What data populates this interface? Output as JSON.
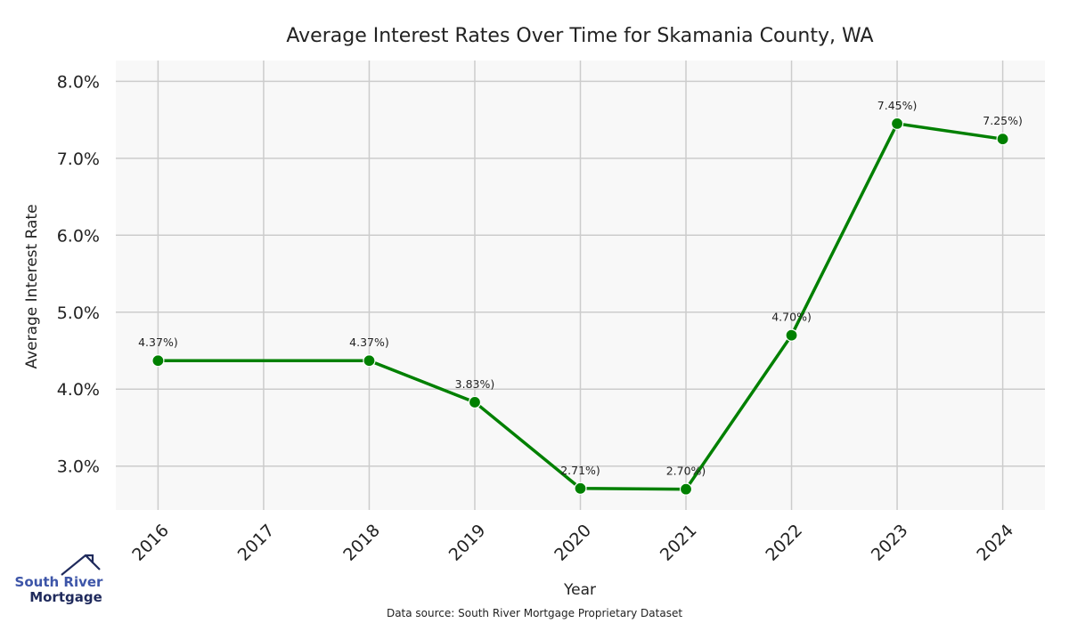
{
  "chart_data": {
    "type": "line",
    "title": "Average Interest Rates Over Time for Skamania County, WA",
    "xlabel": "Year",
    "ylabel": "Average Interest Rate",
    "x_ticks": [
      "2016",
      "2017",
      "2018",
      "2019",
      "2020",
      "2021",
      "2022",
      "2023",
      "2024"
    ],
    "y_ticks": [
      "3.0%",
      "4.0%",
      "5.0%",
      "6.0%",
      "7.0%",
      "8.0%"
    ],
    "y_tick_values": [
      3,
      4,
      5,
      6,
      7,
      8
    ],
    "xlim": [
      2015.6,
      2024.4
    ],
    "ylim": [
      2.43,
      8.27
    ],
    "grid": true,
    "series": [
      {
        "name": "Average Interest Rate",
        "color": "#008000",
        "x": [
          2016,
          2018,
          2019,
          2020,
          2021,
          2022,
          2023,
          2024
        ],
        "values": [
          4.37,
          4.37,
          3.83,
          2.71,
          2.7,
          4.7,
          7.45,
          7.25
        ],
        "labels": [
          "4.37%)",
          "4.37%)",
          "3.83%)",
          "2.71%)",
          "2.70%)",
          "4.70%)",
          "7.45%)",
          "7.25%)"
        ]
      }
    ],
    "source": "Data source: South River Mortgage Proprietary Dataset"
  },
  "logo": {
    "line1": "South River",
    "line2": "Mortgage"
  }
}
